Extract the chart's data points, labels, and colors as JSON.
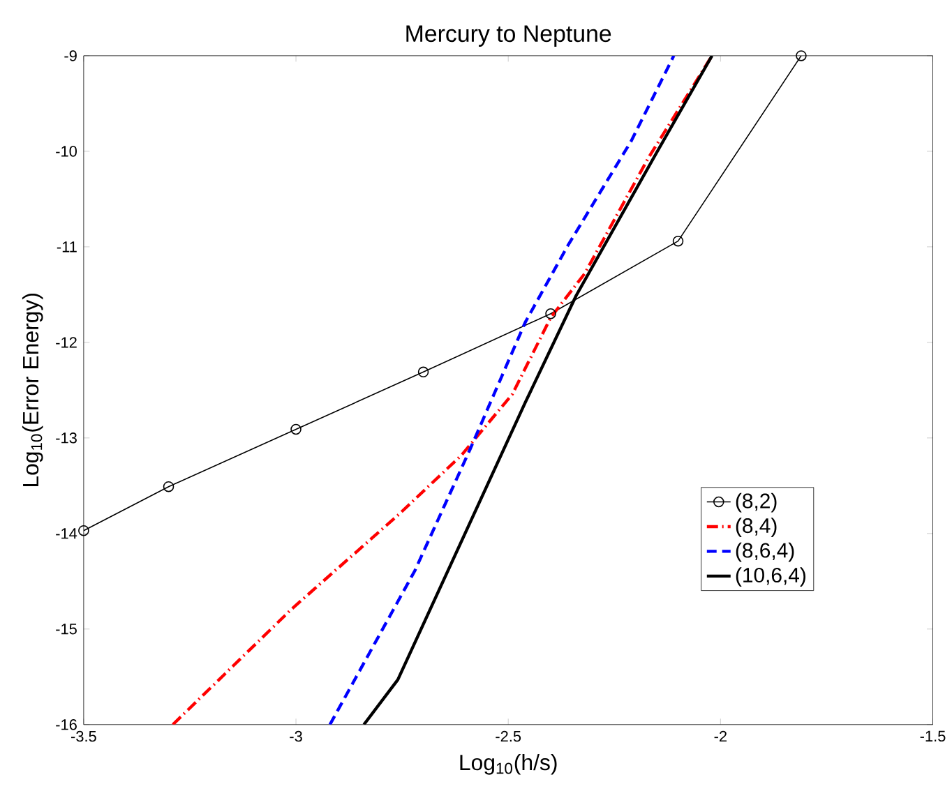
{
  "chart_data": {
    "type": "line",
    "title": "Mercury to Neptune",
    "xlabel": "Log$_{10}$(h/s)",
    "ylabel": "Log$_{10}$(Error Energy)",
    "xlim": [
      -3.5,
      -1.5
    ],
    "xticks": [
      -3.5,
      -3,
      -2.5,
      -2,
      -1.5
    ],
    "ylim": [
      -16,
      -9
    ],
    "yticks": [
      -16,
      -15,
      -14,
      -13,
      -12,
      -11,
      -10,
      -9
    ],
    "grid": false,
    "legend": "bottom right",
    "series": [
      {
        "name": "(8,2)",
        "color": "#000000",
        "marker": "circle",
        "line_style": "solid",
        "x": [
          -3.5,
          -3.3,
          -3.0,
          -2.7,
          -2.4,
          -2.1,
          -1.81
        ],
        "values": [
          -13.97,
          -13.51,
          -12.91,
          -12.31,
          -11.7,
          -10.94,
          -9.0
        ]
      },
      {
        "name": "(8,4)",
        "color": "#ff0000",
        "marker": "none",
        "line_style": "dashdot",
        "x": [
          -3.29,
          -3.01,
          -2.76,
          -2.61,
          -2.49,
          -2.4,
          -2.32,
          -2.17,
          -2.02
        ],
        "values": [
          -16.0,
          -14.79,
          -13.81,
          -13.18,
          -12.54,
          -11.74,
          -11.28,
          -10.07,
          -9.0
        ]
      },
      {
        "name": "(8,6,4)",
        "color": "#0000ff",
        "marker": "none",
        "line_style": "dashed",
        "x": [
          -2.92,
          -2.72,
          -2.59,
          -2.46,
          -2.36,
          -2.21,
          -2.11
        ],
        "values": [
          -16.0,
          -14.39,
          -13.12,
          -11.79,
          -10.99,
          -9.89,
          -9.0
        ]
      },
      {
        "name": "(10,6,4)",
        "color": "#000000",
        "marker": "none",
        "line_style": "solid",
        "x": [
          -2.84,
          -2.76,
          -2.46,
          -2.34,
          -2.15,
          -2.02
        ],
        "values": [
          -16.0,
          -15.53,
          -12.63,
          -11.51,
          -10.01,
          -9.0
        ]
      }
    ]
  }
}
